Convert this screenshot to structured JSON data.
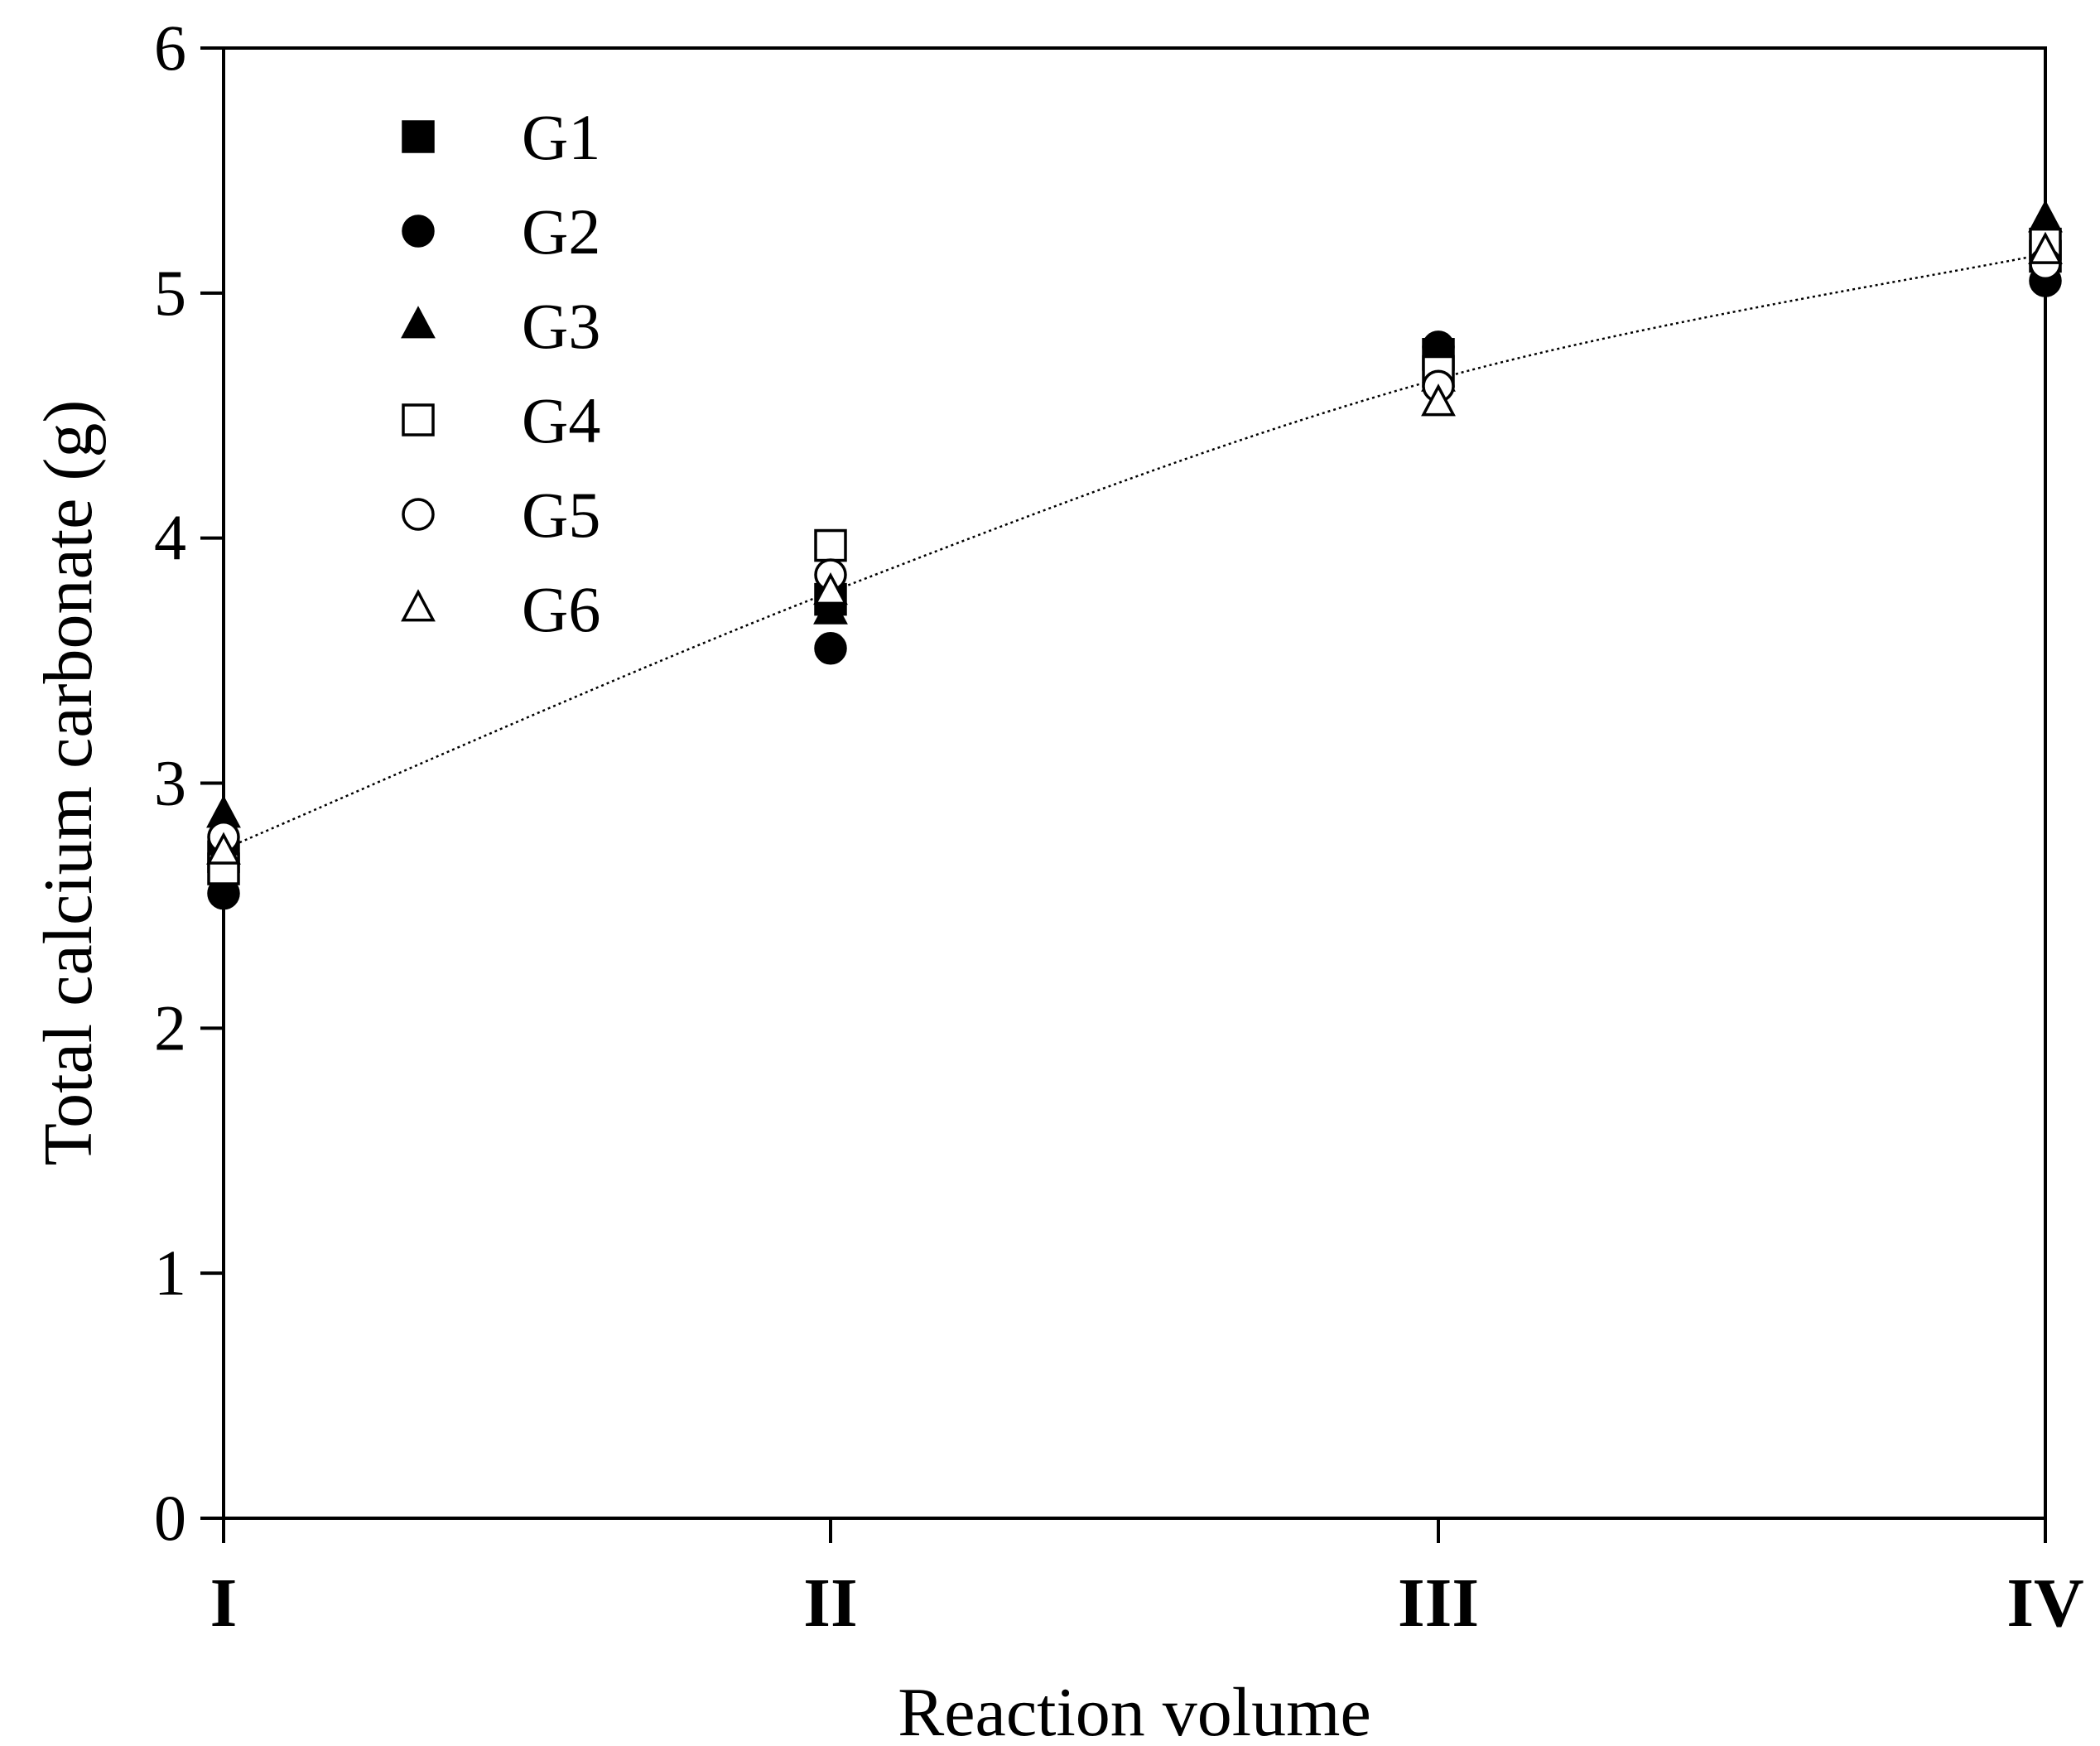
{
  "chart_data": {
    "type": "scatter",
    "title": "",
    "xlabel": "Reaction volume",
    "ylabel": "Total calcium carbonate (g)",
    "categories": [
      "I",
      "II",
      "III",
      "IV"
    ],
    "ylim": [
      0,
      6
    ],
    "yticks": [
      "0",
      "1",
      "2",
      "3",
      "4",
      "5",
      "6"
    ],
    "grid": false,
    "legend_position": "top-left",
    "series": [
      {
        "name": "G1",
        "marker": "square",
        "filled": true,
        "values": [
          2.7,
          3.75,
          4.75,
          5.15
        ]
      },
      {
        "name": "G2",
        "marker": "circle",
        "filled": true,
        "values": [
          2.55,
          3.55,
          4.78,
          5.05
        ]
      },
      {
        "name": "G3",
        "marker": "triangle",
        "filled": true,
        "values": [
          2.87,
          3.7,
          4.65,
          5.3
        ]
      },
      {
        "name": "G4",
        "marker": "square",
        "filled": false,
        "values": [
          2.65,
          3.97,
          4.68,
          5.2
        ]
      },
      {
        "name": "G5",
        "marker": "circle",
        "filled": false,
        "values": [
          2.78,
          3.85,
          4.62,
          5.12
        ]
      },
      {
        "name": "G6",
        "marker": "triangle",
        "filled": false,
        "values": [
          2.72,
          3.78,
          4.55,
          5.17
        ]
      }
    ],
    "trendline": {
      "style": "dotted",
      "values": [
        2.73,
        3.78,
        4.65,
        5.16
      ]
    }
  }
}
